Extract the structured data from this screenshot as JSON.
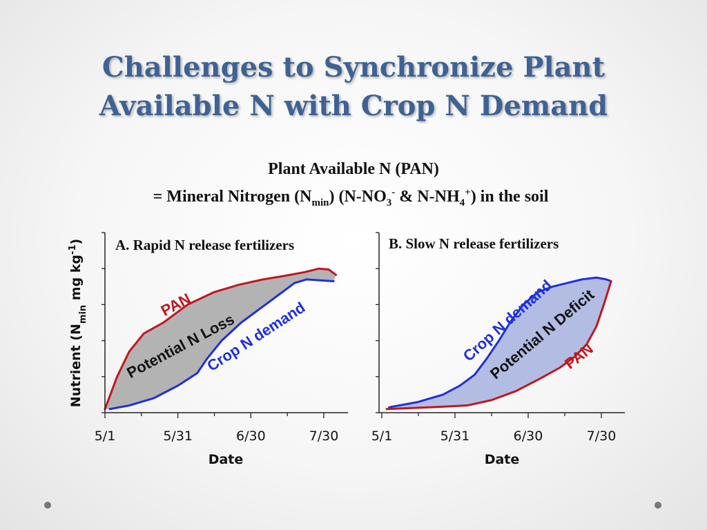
{
  "slide": {
    "title_line1": "Challenges to Synchronize Plant",
    "title_line2": "Available N with Crop N Demand",
    "subtitle_line1": "Plant Available N (PAN)",
    "subtitle_line2_parts": {
      "a": "= Mineral Nitrogen (N",
      "b": "min",
      "c": ") (N-NO",
      "d": "3",
      "e": "-",
      "f": " & N-NH",
      "g": "4",
      "h": "+",
      "i": ") in the soil"
    }
  },
  "colors": {
    "title": "#3e6294",
    "pan": "#c0171d",
    "crop_n_demand": "#1f2fdc",
    "loss_fill": "#b3b3b3",
    "deficit_fill": "#b3bde3"
  },
  "chart_data": [
    {
      "type": "line",
      "title": "A. Rapid N release fertilizers",
      "xlabel": "Date",
      "ylabel": "Nutrient (N",
      "ylabel_sub": "min",
      "ylabel_tail": " mg kg",
      "ylabel_sup": "-1",
      "ylabel_end": ")",
      "x_tick_labels": [
        "5/1",
        "5/31",
        "6/30",
        "7/30"
      ],
      "x_ticks_days": [
        0,
        30,
        60,
        90
      ],
      "xlim": [
        0,
        100
      ],
      "ylim": [
        0,
        100
      ],
      "y_ticks": [
        0,
        20,
        40,
        60,
        80,
        100
      ],
      "series": [
        {
          "name": "PAN",
          "color": "#c0171d",
          "x": [
            0,
            5,
            10,
            16,
            24,
            34,
            45,
            55,
            65,
            74,
            82,
            88,
            92,
            95
          ],
          "y": [
            2,
            20,
            34,
            44,
            50,
            60,
            67,
            71,
            74,
            76,
            78,
            80,
            79.5,
            76.5
          ]
        },
        {
          "name": "Crop N demand",
          "color": "#1f2fdc",
          "x": [
            2,
            10,
            20,
            30,
            38,
            42,
            48,
            56,
            64,
            72,
            78,
            83,
            88,
            94
          ],
          "y": [
            2,
            4,
            8,
            15,
            22,
            30,
            40,
            50,
            58,
            66,
            72,
            74,
            73.5,
            73
          ]
        }
      ],
      "annotations": [
        {
          "text": "PAN",
          "color": "#c0171d"
        },
        {
          "text": "Potential N Loss",
          "color": "#111111"
        },
        {
          "text": "Crop N demand",
          "color": "#1f2fdc"
        }
      ]
    },
    {
      "type": "line",
      "title": "B. Slow N release fertilizers",
      "xlabel": "Date",
      "x_tick_labels": [
        "5/1",
        "5/31",
        "6/30",
        "7/30"
      ],
      "x_ticks_days": [
        0,
        30,
        60,
        90
      ],
      "xlim": [
        0,
        100
      ],
      "ylim": [
        0,
        100
      ],
      "y_ticks": [
        0,
        20,
        40,
        60,
        80,
        100
      ],
      "series": [
        {
          "name": "Crop N demand",
          "color": "#1f2fdc",
          "x": [
            3,
            15,
            25,
            32,
            38,
            43,
            48,
            53,
            58,
            64,
            70,
            76,
            82,
            88,
            92,
            94
          ],
          "y": [
            3,
            6,
            10,
            15,
            21,
            30,
            40,
            51,
            60,
            67,
            70,
            72,
            74,
            75,
            74,
            73
          ]
        },
        {
          "name": "PAN",
          "color": "#c0171d",
          "x": [
            2,
            20,
            35,
            45,
            55,
            65,
            73,
            79,
            84,
            88,
            91,
            94
          ],
          "y": [
            2,
            3,
            4,
            7,
            12,
            19,
            25,
            31,
            38,
            48,
            60,
            73
          ]
        }
      ],
      "annotations": [
        {
          "text": "Crop N demand",
          "color": "#1f2fdc"
        },
        {
          "text": "Potential N Deficit",
          "color": "#111111"
        },
        {
          "text": "PAN",
          "color": "#c0171d"
        }
      ]
    }
  ]
}
